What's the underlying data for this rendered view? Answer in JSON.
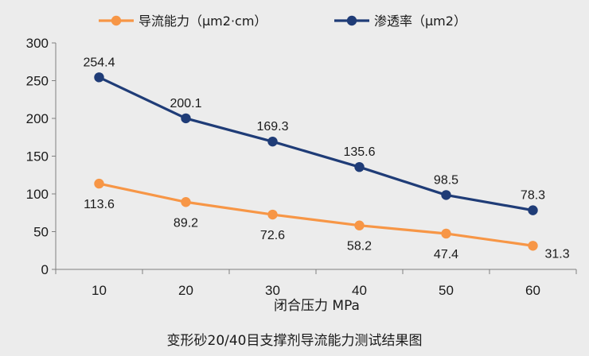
{
  "chart_data": {
    "type": "line",
    "title": "",
    "caption": "变形砂20/40目支撑剂导流能力测试结果图",
    "xlabel": "闭合压力 MPa",
    "ylabel": "",
    "categories": [
      "10",
      "20",
      "30",
      "40",
      "50",
      "60"
    ],
    "ylim": [
      0,
      300
    ],
    "yticks": [
      "0",
      "50",
      "100",
      "150",
      "200",
      "250",
      "300"
    ],
    "legend_position": "top",
    "grid": false,
    "series": [
      {
        "name": "导流能力（μm2·cm）",
        "color": "#f79646",
        "values": [
          113.6,
          89.2,
          72.6,
          58.2,
          47.4,
          31.3
        ],
        "labels": [
          "113.6",
          "89.2",
          "72.6",
          "58.2",
          "47.4",
          "31.3"
        ]
      },
      {
        "name": "渗透率（μm2）",
        "color": "#1f3c77",
        "values": [
          254.4,
          200.1,
          169.3,
          135.6,
          98.5,
          78.3
        ],
        "labels": [
          "254.4",
          "200.1",
          "169.3",
          "135.6",
          "98.5",
          "78.3"
        ]
      }
    ]
  }
}
